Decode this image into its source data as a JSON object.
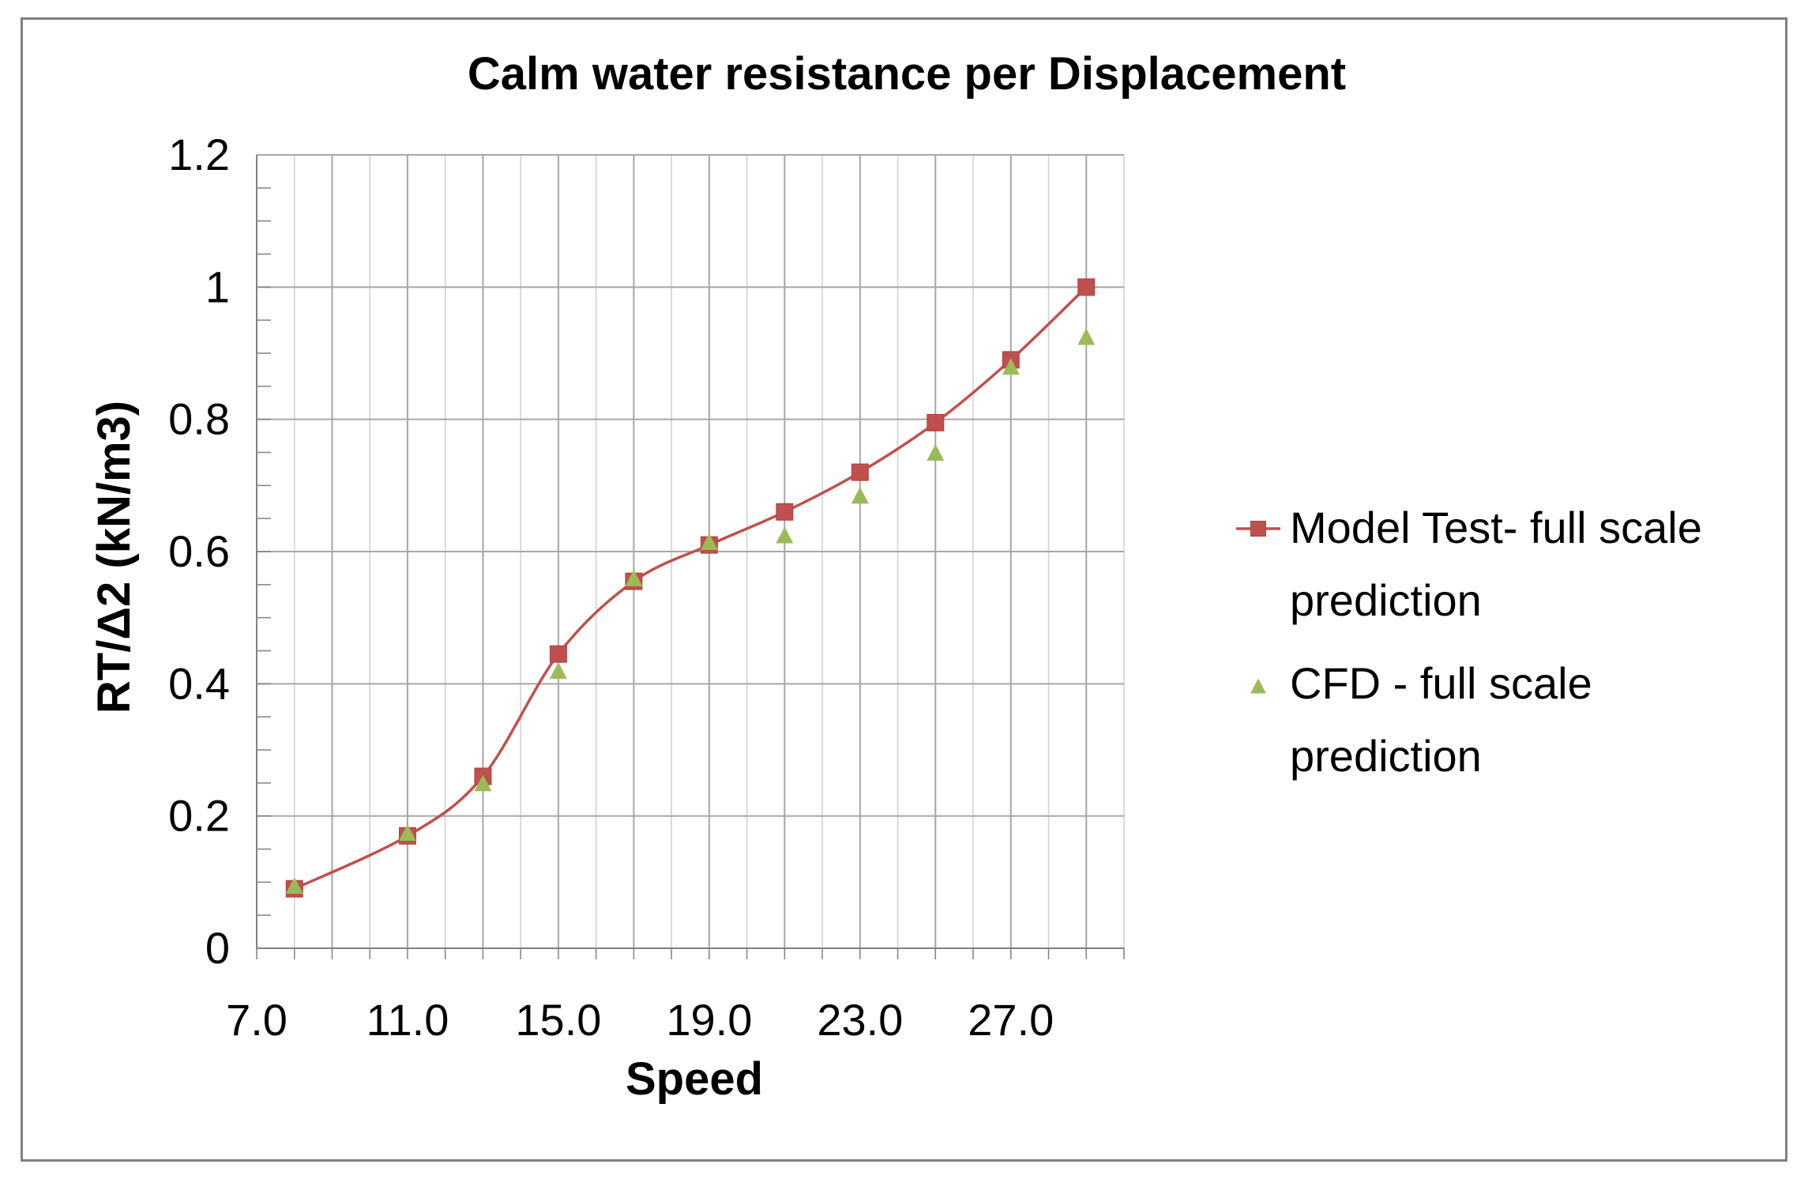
{
  "chart_data": {
    "type": "line",
    "title": "Calm water resistance per Displacement",
    "xlabel": "Speed",
    "ylabel": "RT/Δ2 (kN/m3)",
    "xlim": [
      7,
      30
    ],
    "ylim": [
      0,
      1.2
    ],
    "x_ticks": [
      "7.0",
      "11.0",
      "15.0",
      "19.0",
      "23.0",
      "27.0"
    ],
    "y_ticks": [
      "0",
      "0.2",
      "0.4",
      "0.6",
      "0.8",
      "1",
      "1.2"
    ],
    "grid": true,
    "legend_position": "right",
    "series": [
      {
        "name": "Model Test- full scale prediction",
        "legend_lines": [
          "Model Test- full scale",
          "prediction"
        ],
        "marker": "square",
        "line": "smooth",
        "color": "#c0504d",
        "x": [
          8,
          11,
          13,
          15,
          17,
          19,
          21,
          23,
          25,
          27,
          29
        ],
        "y": [
          0.09,
          0.17,
          0.26,
          0.445,
          0.555,
          0.61,
          0.66,
          0.72,
          0.795,
          0.89,
          1.0
        ]
      },
      {
        "name": "CFD - full scale prediction",
        "legend_lines": [
          "CFD - full scale",
          "prediction"
        ],
        "marker": "triangle",
        "line": "none",
        "color": "#9bbb59",
        "x": [
          8,
          11,
          13,
          15,
          17,
          19,
          21,
          23,
          25,
          27,
          29
        ],
        "y": [
          0.095,
          0.175,
          0.25,
          0.42,
          0.56,
          0.615,
          0.625,
          0.685,
          0.75,
          0.88,
          0.925
        ]
      }
    ]
  }
}
